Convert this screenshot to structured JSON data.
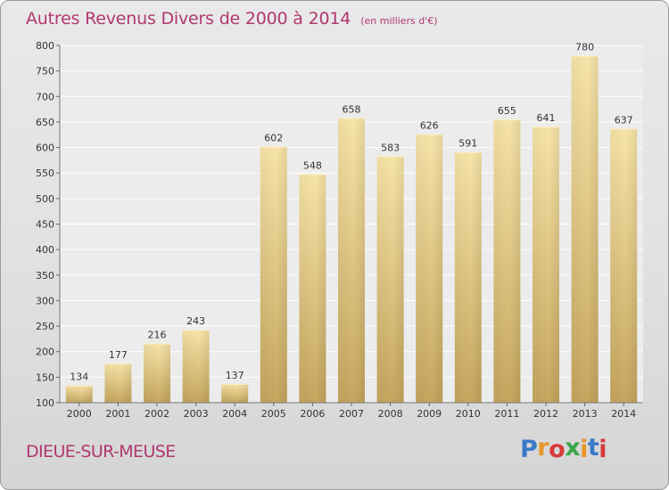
{
  "header": {
    "title": "Autres Revenus Divers de 2000 à 2014",
    "subtitle": "(en milliers d'€)"
  },
  "footer": {
    "location": "DIEUE-SUR-MEUSE",
    "brand_letters": [
      {
        "ch": "P",
        "color": "#3a78c8"
      },
      {
        "ch": "r",
        "color": "#e8962a"
      },
      {
        "ch": "o",
        "color": "#d83a3a"
      },
      {
        "ch": "x",
        "color": "#3aa64a"
      },
      {
        "ch": "i",
        "color": "#e8962a"
      },
      {
        "ch": "t",
        "color": "#3a78c8"
      },
      {
        "ch": "i",
        "color": "#d83a3a"
      }
    ]
  },
  "chart_data": {
    "type": "bar",
    "title": "Autres Revenus Divers de 2000 à 2014",
    "subtitle": "(en milliers d'€)",
    "categories": [
      "2000",
      "2001",
      "2002",
      "2003",
      "2004",
      "2005",
      "2006",
      "2007",
      "2008",
      "2009",
      "2010",
      "2011",
      "2012",
      "2013",
      "2014"
    ],
    "values": [
      134,
      177,
      216,
      243,
      137,
      602,
      548,
      658,
      583,
      626,
      591,
      655,
      641,
      780,
      637
    ],
    "ylim": [
      100,
      800
    ],
    "yticks": [
      100,
      150,
      200,
      250,
      300,
      350,
      400,
      450,
      500,
      550,
      600,
      650,
      700,
      750,
      800
    ],
    "grid": true,
    "bar_color_light": "#f6e2a4",
    "bar_color_dark": "#c6a55c"
  }
}
